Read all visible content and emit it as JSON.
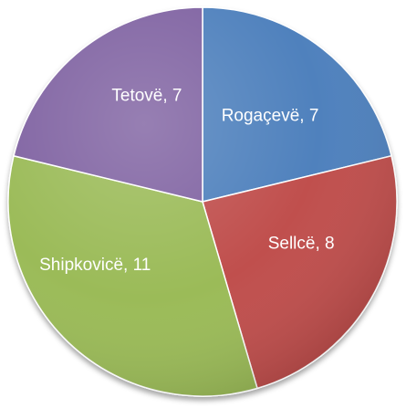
{
  "chart_data": {
    "type": "pie",
    "categories": [
      "Rogaçevë",
      "Sellcë",
      "Shipkovicë",
      "Tetovë"
    ],
    "values": [
      7,
      8,
      11,
      7
    ],
    "labels": [
      "Rogaçevë, 7",
      "Sellcë, 8",
      "Shipkovicë, 11",
      "Tetovë, 7"
    ],
    "start_angle": "top (12 o'clock)",
    "direction": "clockwise",
    "legend": "none",
    "colors": [
      "#4F81BD",
      "#C0504D",
      "#9BBB59",
      "#8064A2"
    ]
  }
}
